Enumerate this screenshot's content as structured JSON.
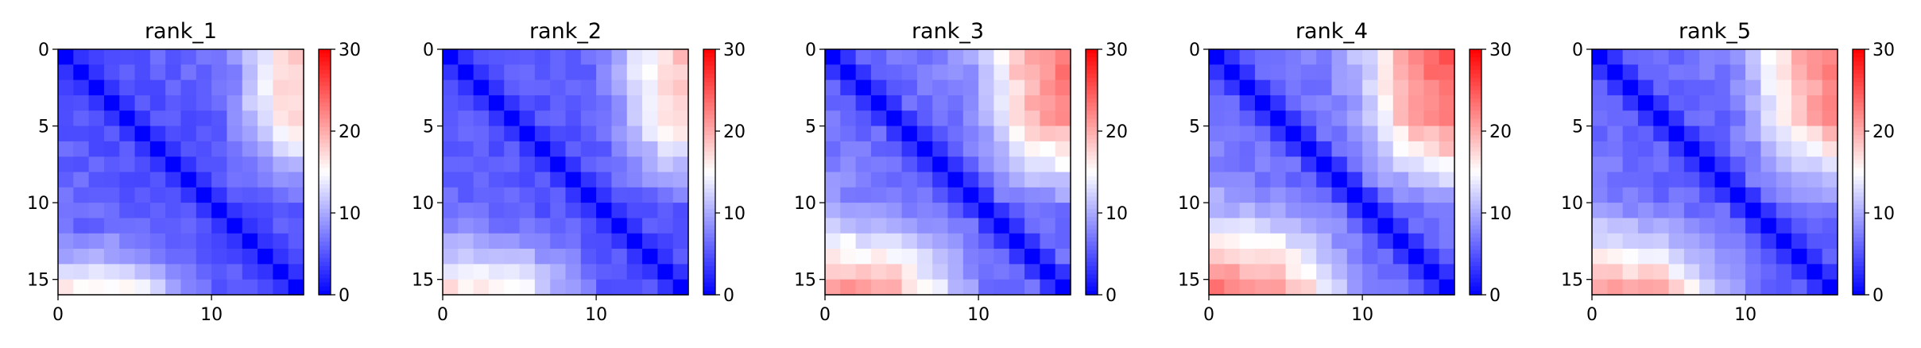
{
  "chart_data": [
    {
      "type": "heatmap",
      "title": "rank_1",
      "n": 16,
      "base": 4.5,
      "slope": 0.18,
      "rowAmp": [
        0,
        0,
        0,
        0,
        0,
        0,
        0,
        0,
        0,
        0,
        0,
        0,
        2,
        3,
        6,
        9
      ],
      "colAmp": [
        0,
        0,
        0,
        0,
        0,
        0,
        0,
        0,
        0,
        0,
        0,
        2,
        5,
        7,
        10,
        11
      ],
      "xticks": [
        0,
        10
      ],
      "yticks": [
        0,
        5,
        10,
        15
      ],
      "xlim": [
        0,
        16
      ],
      "ylim": [
        16,
        0
      ],
      "colorbar": {
        "ticks": [
          0,
          10,
          20,
          30
        ],
        "range": [
          0,
          30
        ]
      }
    },
    {
      "type": "heatmap",
      "title": "rank_2",
      "n": 16,
      "base": 4.5,
      "slope": 0.2,
      "rowAmp": [
        0,
        0,
        0,
        0,
        0,
        0,
        0,
        0,
        0,
        0,
        0,
        1,
        3,
        5,
        7,
        9
      ],
      "colAmp": [
        0,
        0,
        0,
        0,
        0,
        0,
        0,
        0,
        0,
        0,
        1,
        3,
        6,
        8,
        10,
        11
      ],
      "xticks": [
        0,
        10
      ],
      "yticks": [
        0,
        5,
        10,
        15
      ],
      "xlim": [
        0,
        16
      ],
      "ylim": [
        16,
        0
      ],
      "colorbar": {
        "ticks": [
          0,
          10,
          20,
          30
        ],
        "range": [
          0,
          30
        ]
      }
    },
    {
      "type": "heatmap",
      "title": "rank_3",
      "n": 16,
      "base": 5.5,
      "slope": 0.3,
      "rowAmp": [
        0,
        0,
        0,
        0,
        0,
        0,
        0,
        0,
        0,
        0,
        1,
        3,
        5,
        7,
        9,
        11
      ],
      "colAmp": [
        0,
        0,
        0,
        0,
        0,
        0,
        0,
        0,
        0,
        1,
        3,
        6,
        9,
        11,
        12,
        13
      ],
      "xticks": [
        0,
        10
      ],
      "yticks": [
        0,
        5,
        10,
        15
      ],
      "xlim": [
        0,
        16
      ],
      "ylim": [
        16,
        0
      ],
      "colorbar": {
        "ticks": [
          0,
          10,
          20,
          30
        ],
        "range": [
          0,
          30
        ]
      }
    },
    {
      "type": "heatmap",
      "title": "rank_4",
      "n": 16,
      "base": 5.5,
      "slope": 0.35,
      "rowAmp": [
        0,
        0,
        0,
        0,
        0,
        0,
        0,
        0,
        0,
        1,
        2,
        4,
        6,
        8,
        10,
        12
      ],
      "colAmp": [
        0,
        0,
        0,
        0,
        0,
        0,
        0,
        0,
        1,
        2,
        4,
        7,
        10,
        12,
        13,
        14
      ],
      "xticks": [
        0,
        10
      ],
      "yticks": [
        0,
        5,
        10,
        15
      ],
      "xlim": [
        0,
        16
      ],
      "ylim": [
        16,
        0
      ],
      "colorbar": {
        "ticks": [
          0,
          10,
          20,
          30
        ],
        "range": [
          0,
          30
        ]
      }
    },
    {
      "type": "heatmap",
      "title": "rank_5",
      "n": 16,
      "base": 5,
      "slope": 0.28,
      "rowAmp": [
        0,
        0,
        0,
        0,
        0,
        0,
        0,
        0,
        0,
        0,
        1,
        3,
        5,
        7,
        9,
        11
      ],
      "colAmp": [
        0,
        0,
        0,
        0,
        0,
        0,
        0,
        0,
        0,
        1,
        3,
        6,
        9,
        11,
        12,
        13
      ],
      "xticks": [
        0,
        10
      ],
      "yticks": [
        0,
        5,
        10,
        15
      ],
      "xlim": [
        0,
        16
      ],
      "ylim": [
        16,
        0
      ],
      "colorbar": {
        "ticks": [
          0,
          10,
          20,
          30
        ],
        "range": [
          0,
          30
        ]
      }
    }
  ]
}
